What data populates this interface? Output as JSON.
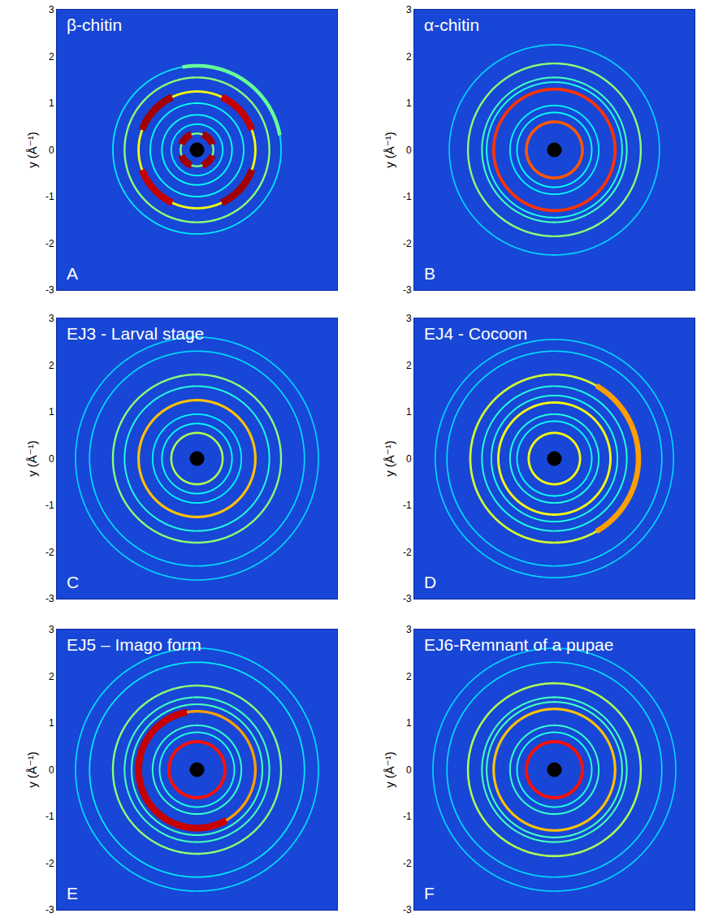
{
  "chart_data": [
    {
      "type": "diffraction",
      "title": "β-chitin",
      "letter": "A",
      "y_label": "y (Å⁻¹)",
      "xlim": [
        -3,
        3
      ],
      "ylim": [
        -3,
        3
      ],
      "yticks": [
        -3,
        -2,
        -1,
        0,
        1,
        2,
        3
      ],
      "tick_labels": "y",
      "beamstop_radius": 0.15,
      "rings": [
        {
          "r": 0.35,
          "intensity": 0.3,
          "arcs": [
            {
              "from": 20,
              "to": 70,
              "intensity": 0.95
            },
            {
              "from": 110,
              "to": 160,
              "intensity": 0.95
            },
            {
              "from": 200,
              "to": 250,
              "intensity": 0.95
            },
            {
              "from": 290,
              "to": 340,
              "intensity": 0.95
            }
          ]
        },
        {
          "r": 0.55,
          "intensity": 0.1
        },
        {
          "r": 0.75,
          "intensity": 0.12
        },
        {
          "r": 1.0,
          "intensity": 0.12
        },
        {
          "r": 1.25,
          "intensity": 0.45,
          "arcs": [
            {
              "from": 20,
              "to": 65,
              "intensity": 0.9
            },
            {
              "from": 115,
              "to": 160,
              "intensity": 0.95
            },
            {
              "from": 200,
              "to": 245,
              "intensity": 0.9
            },
            {
              "from": 295,
              "to": 340,
              "intensity": 0.95
            }
          ]
        },
        {
          "r": 1.55,
          "intensity": 0.3
        },
        {
          "r": 1.8,
          "intensity": 0.08,
          "arcs": [
            {
              "from": 10,
              "to": 100,
              "intensity": 0.25
            }
          ]
        }
      ]
    },
    {
      "type": "diffraction",
      "title": "α-chitin",
      "letter": "B",
      "y_label": "y (Å⁻¹)",
      "xlim": [
        -3,
        3
      ],
      "ylim": [
        -3,
        3
      ],
      "yticks": [
        -3,
        -2,
        -1,
        0,
        1,
        2,
        3
      ],
      "tick_labels": "y",
      "beamstop_radius": 0.15,
      "rings": [
        {
          "r": 0.6,
          "intensity": 0.7
        },
        {
          "r": 0.8,
          "intensity": 0.12
        },
        {
          "r": 0.95,
          "intensity": 0.1
        },
        {
          "r": 1.3,
          "intensity": 0.75
        },
        {
          "r": 1.45,
          "intensity": 0.15
        },
        {
          "r": 1.55,
          "intensity": 0.2
        },
        {
          "r": 1.85,
          "intensity": 0.3
        },
        {
          "r": 2.25,
          "intensity": 0.05
        }
      ]
    },
    {
      "type": "diffraction",
      "title": "EJ3 - Larval stage",
      "letter": "C",
      "y_label": "y (Å⁻¹)",
      "xlim": [
        -3,
        3
      ],
      "ylim": [
        -3,
        3
      ],
      "yticks": [
        -3,
        -2,
        -1,
        0,
        1,
        2,
        3
      ],
      "tick_labels": "y",
      "beamstop_radius": 0.15,
      "rings": [
        {
          "r": 0.55,
          "intensity": 0.35
        },
        {
          "r": 0.75,
          "intensity": 0.12
        },
        {
          "r": 0.95,
          "intensity": 0.1
        },
        {
          "r": 1.25,
          "intensity": 0.55
        },
        {
          "r": 1.55,
          "intensity": 0.15
        },
        {
          "r": 1.8,
          "intensity": 0.3
        },
        {
          "r": 2.3,
          "intensity": 0.06
        },
        {
          "r": 2.6,
          "intensity": 0.05
        }
      ]
    },
    {
      "type": "diffraction",
      "title": "EJ4 - Cocoon",
      "letter": "D",
      "y_label": "y (Å⁻¹)",
      "xlim": [
        -3,
        3
      ],
      "ylim": [
        -3,
        3
      ],
      "yticks": [
        -3,
        -2,
        -1,
        0,
        1,
        2,
        3
      ],
      "tick_labels": "y",
      "beamstop_radius": 0.15,
      "rings": [
        {
          "r": 0.55,
          "intensity": 0.45
        },
        {
          "r": 0.8,
          "intensity": 0.12
        },
        {
          "r": 0.95,
          "intensity": 0.15
        },
        {
          "r": 1.2,
          "intensity": 0.45
        },
        {
          "r": 1.35,
          "intensity": 0.15
        },
        {
          "r": 1.55,
          "intensity": 0.15
        },
        {
          "r": 1.8,
          "intensity": 0.4,
          "arcs": [
            {
              "from": -60,
              "to": 60,
              "intensity": 0.6
            }
          ]
        },
        {
          "r": 2.3,
          "intensity": 0.06
        },
        {
          "r": 2.55,
          "intensity": 0.05
        }
      ]
    },
    {
      "type": "diffraction",
      "title": "EJ5 – Imago form",
      "letter": "E",
      "y_label": "y (Å⁻¹)",
      "xlim": [
        -3,
        3
      ],
      "ylim": [
        -3,
        3
      ],
      "yticks": [
        -3,
        -2,
        -1,
        0,
        1,
        2,
        3
      ],
      "tick_labels": "y",
      "beamstop_radius": 0.15,
      "rings": [
        {
          "r": 0.6,
          "intensity": 0.8
        },
        {
          "r": 0.8,
          "intensity": 0.15
        },
        {
          "r": 0.95,
          "intensity": 0.18
        },
        {
          "r": 1.25,
          "intensity": 0.6,
          "arcs": [
            {
              "from": 100,
              "to": 300,
              "intensity": 0.9
            }
          ]
        },
        {
          "r": 1.4,
          "intensity": 0.2
        },
        {
          "r": 1.55,
          "intensity": 0.2
        },
        {
          "r": 1.8,
          "intensity": 0.3
        },
        {
          "r": 2.3,
          "intensity": 0.08
        },
        {
          "r": 2.6,
          "intensity": 0.06
        }
      ]
    },
    {
      "type": "diffraction",
      "title": "EJ6-Remnant of a pupae",
      "letter": "F",
      "y_label": "y (Å⁻¹)",
      "xlim": [
        -3,
        3
      ],
      "ylim": [
        -3,
        3
      ],
      "yticks": [
        -3,
        -2,
        -1,
        0,
        1,
        2,
        3
      ],
      "tick_labels": "y",
      "beamstop_radius": 0.15,
      "rings": [
        {
          "r": 0.6,
          "intensity": 0.8
        },
        {
          "r": 0.8,
          "intensity": 0.15
        },
        {
          "r": 0.95,
          "intensity": 0.18
        },
        {
          "r": 1.3,
          "intensity": 0.55
        },
        {
          "r": 1.45,
          "intensity": 0.2
        },
        {
          "r": 1.55,
          "intensity": 0.2
        },
        {
          "r": 1.85,
          "intensity": 0.35
        },
        {
          "r": 2.3,
          "intensity": 0.06
        },
        {
          "r": 2.6,
          "intensity": 0.05
        }
      ]
    }
  ]
}
